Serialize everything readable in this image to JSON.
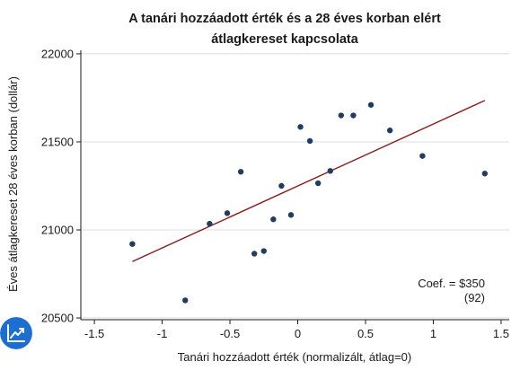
{
  "chart_data": {
    "type": "scatter",
    "title_lines": [
      "A tanári hozzáadott érték és a 28 éves korban elért",
      "átlagkereset kapcsolata"
    ],
    "xlabel": "Tanári hozzáadott érték (normalizált, átlag=0)",
    "ylabel": "Éves átlagkereset 28 éves korban (dollár)",
    "xlim": [
      -1.6,
      1.56
    ],
    "ylim": [
      20490,
      22020
    ],
    "x_ticks": [
      -1.5,
      -1,
      -0.5,
      0,
      0.5,
      1,
      1.5
    ],
    "x_tick_labels": [
      "-1.5",
      "-1",
      "-0.5",
      "0",
      "0.5",
      "1",
      "1.5"
    ],
    "y_ticks": [
      20500,
      21000,
      21500,
      22000
    ],
    "y_tick_labels": [
      "20500",
      "21000",
      "21500",
      "22000"
    ],
    "grid": "horizontal",
    "points": [
      {
        "x": -1.22,
        "y": 20920
      },
      {
        "x": -0.83,
        "y": 20600
      },
      {
        "x": -0.65,
        "y": 21035
      },
      {
        "x": -0.52,
        "y": 21095
      },
      {
        "x": -0.42,
        "y": 21330
      },
      {
        "x": -0.32,
        "y": 20865
      },
      {
        "x": -0.25,
        "y": 20880
      },
      {
        "x": -0.18,
        "y": 21060
      },
      {
        "x": -0.12,
        "y": 21250
      },
      {
        "x": -0.05,
        "y": 21085
      },
      {
        "x": 0.02,
        "y": 21585
      },
      {
        "x": 0.09,
        "y": 21505
      },
      {
        "x": 0.15,
        "y": 21265
      },
      {
        "x": 0.24,
        "y": 21335
      },
      {
        "x": 0.32,
        "y": 21650
      },
      {
        "x": 0.41,
        "y": 21650
      },
      {
        "x": 0.54,
        "y": 21710
      },
      {
        "x": 0.68,
        "y": 21565
      },
      {
        "x": 0.92,
        "y": 21420
      },
      {
        "x": 1.38,
        "y": 21320
      }
    ],
    "fit_line": {
      "x": [
        -1.22,
        1.38
      ],
      "y": [
        20820,
        21735
      ]
    },
    "annotation_lines": [
      "Coef. = $350",
      "(92)"
    ],
    "colors": {
      "point": "#1f3d63",
      "fit_line": "#8b1a1a",
      "grid": "#dcdcdc",
      "axis": "#1a1a1a",
      "icon_bg": "#1c6fd1"
    }
  },
  "app_icon": {
    "name": "trend-chart-icon"
  }
}
